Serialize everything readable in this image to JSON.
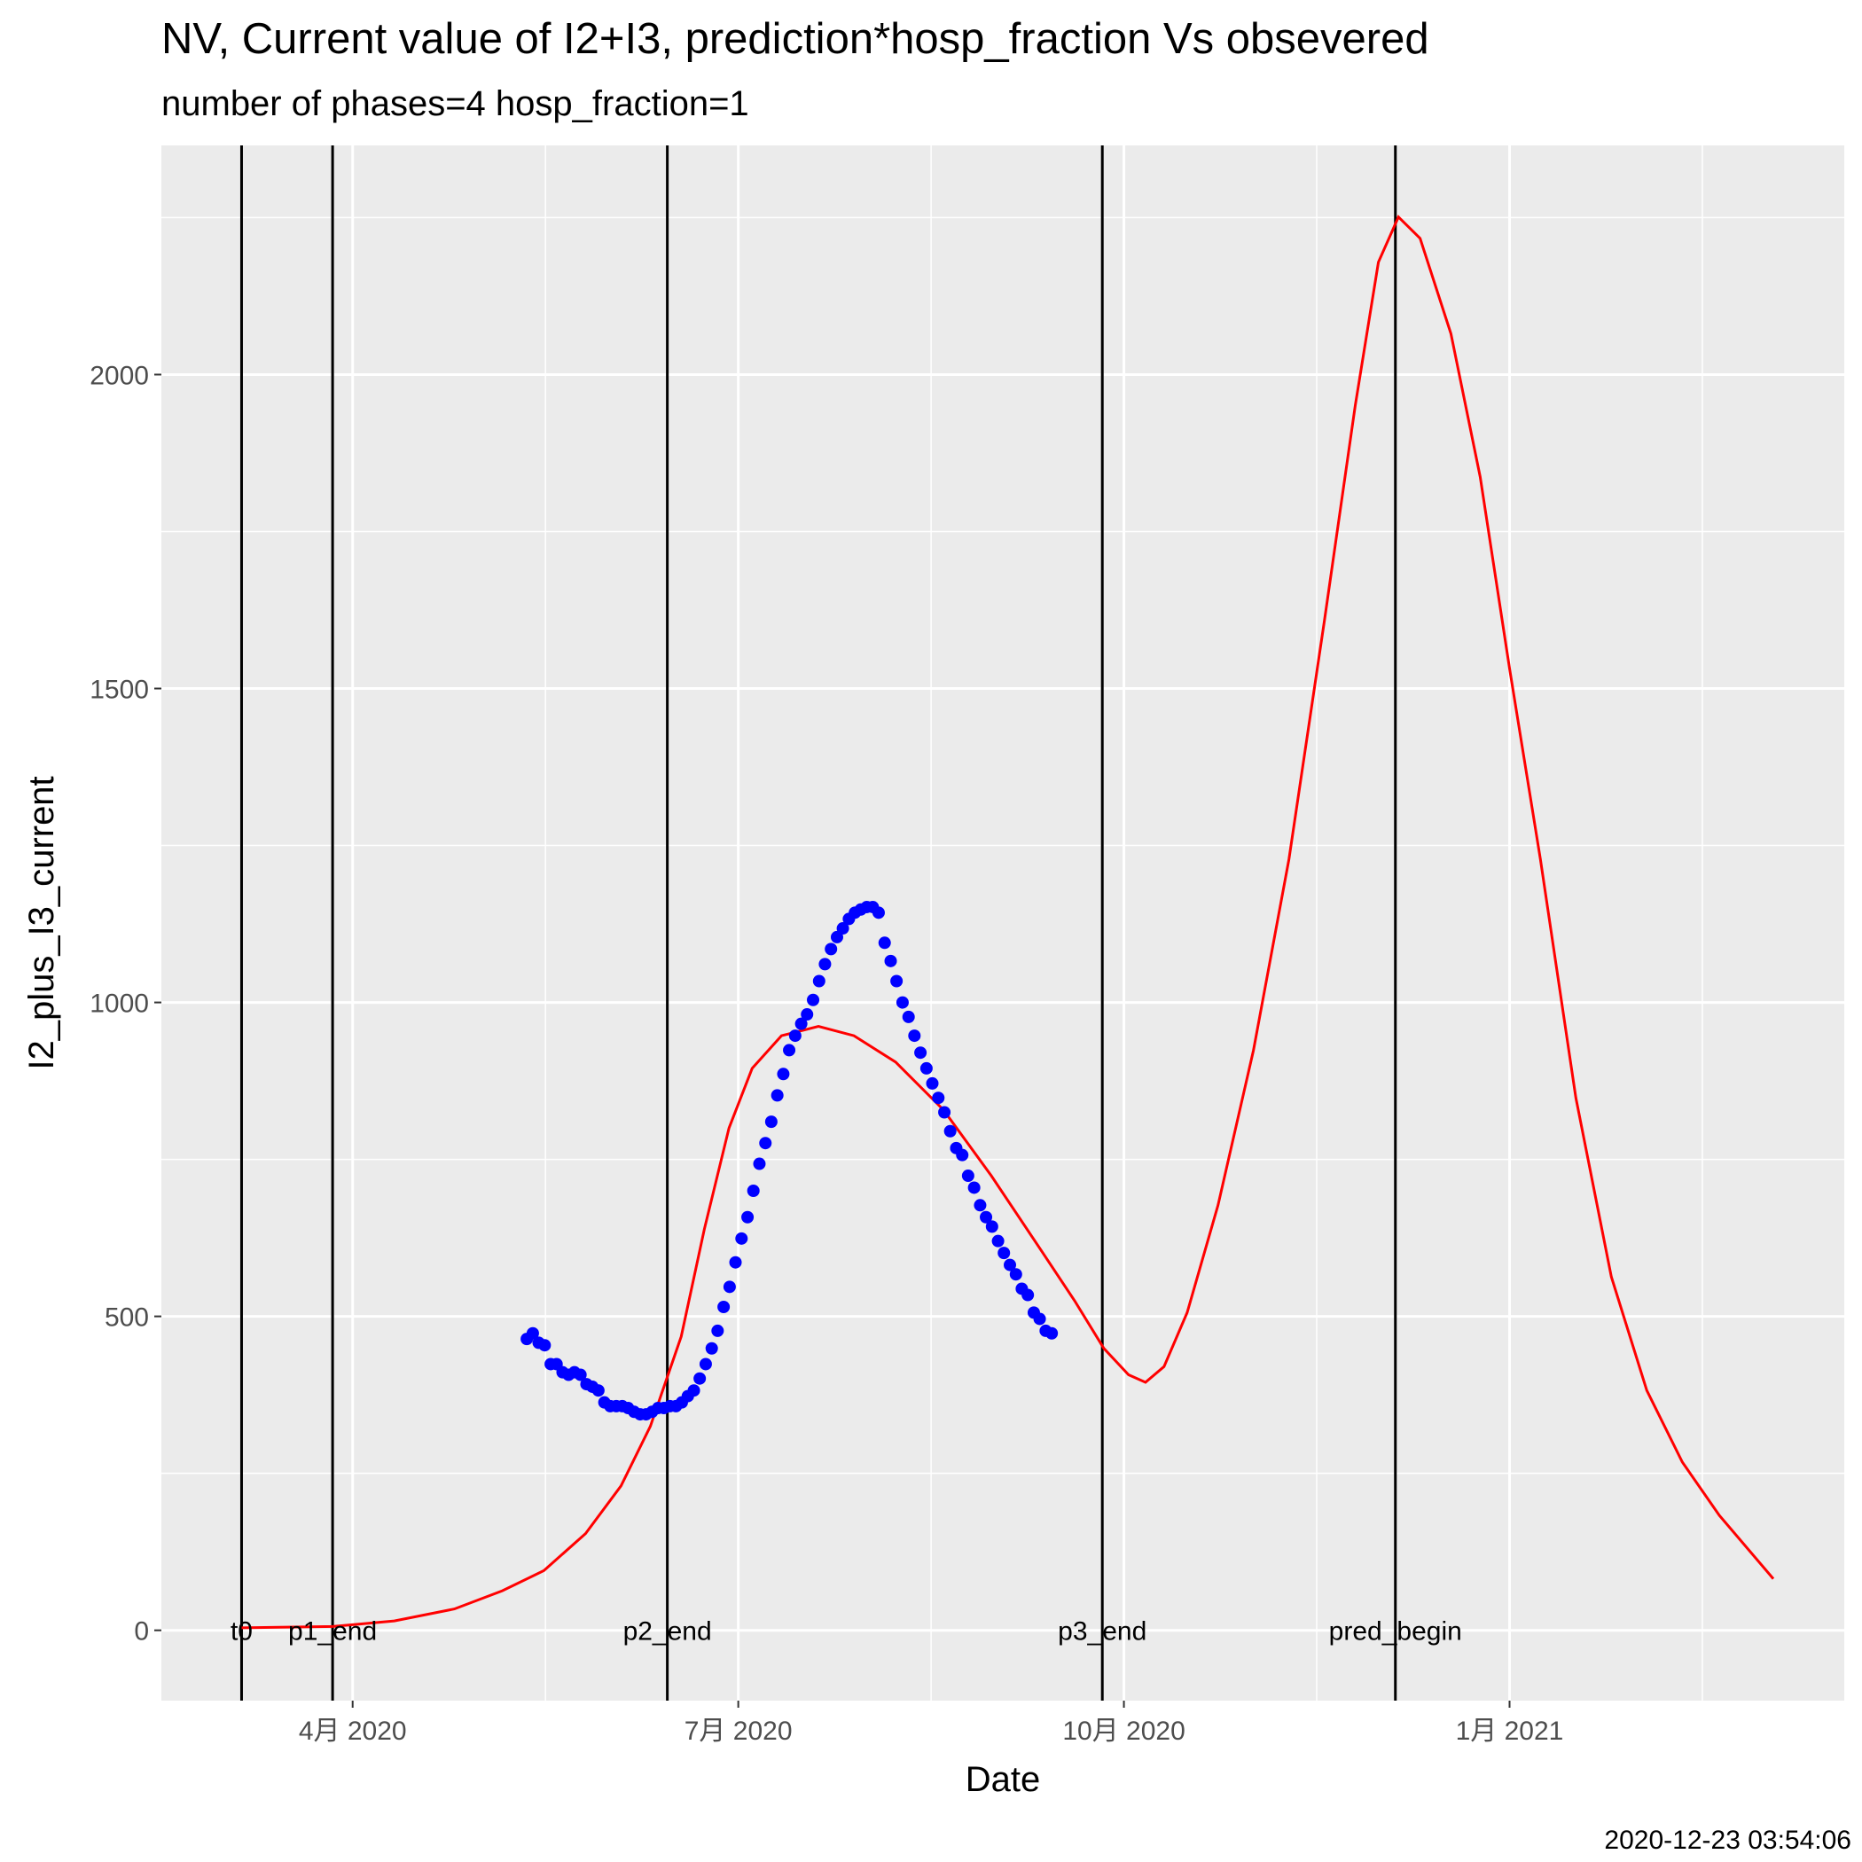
{
  "chart_data": {
    "type": "line",
    "title": "NV, Current value of I2+I3, prediction*hosp_fraction Vs obsevered",
    "subtitle": "number of phases=4   hosp_fraction=1",
    "x_label": "Date",
    "y_label": "I2_plus_I3_current",
    "caption": "2020-12-23 03:54:06",
    "xlim": [
      2020.126,
      2021.217
    ],
    "xticks": [
      {
        "value": 2020.25,
        "label": "4月 2020"
      },
      {
        "value": 2020.5,
        "label": "7月 2020"
      },
      {
        "value": 2020.75,
        "label": "10月 2020"
      },
      {
        "value": 2021.0,
        "label": "1月 2021"
      }
    ],
    "x_minor_ticks": [
      2020.375,
      2020.625,
      2020.875,
      2021.125
    ],
    "ylim": [
      -112,
      2365
    ],
    "yticks": [
      0,
      500,
      1000,
      1500,
      2000
    ],
    "y_minor_ticks": [
      250,
      750,
      1250,
      1750,
      2250
    ],
    "grid": true,
    "vlines": [
      {
        "x": 2020.178,
        "label": "t0"
      },
      {
        "x": 2020.237,
        "label": "p1_end"
      },
      {
        "x": 2020.454,
        "label": "p2_end"
      },
      {
        "x": 2020.736,
        "label": "p3_end"
      },
      {
        "x": 2020.926,
        "label": "pred_begin"
      }
    ],
    "series": [
      {
        "type": "line",
        "color": "#ff0000",
        "x": [
          2020.178,
          2020.237,
          2020.277,
          2020.316,
          2020.347,
          2020.374,
          2020.401,
          2020.424,
          2020.443,
          2020.463,
          2020.478,
          2020.494,
          2020.509,
          2020.528,
          2020.552,
          2020.575,
          2020.602,
          2020.633,
          2020.664,
          2020.695,
          2020.718,
          2020.737,
          2020.753,
          2020.764,
          2020.776,
          2020.791,
          2020.811,
          2020.834,
          2020.857,
          2020.88,
          2020.9,
          2020.915,
          2020.928,
          2020.942,
          2020.962,
          2020.981,
          2021.0,
          2021.02,
          2021.043,
          2021.066,
          2021.089,
          2021.112,
          2021.136,
          2021.171
        ],
        "values": [
          4,
          6,
          15,
          34,
          63,
          95,
          154,
          230,
          325,
          468,
          639,
          800,
          895,
          947,
          962,
          947,
          905,
          829,
          724,
          610,
          525,
          449,
          407,
          395,
          420,
          506,
          677,
          924,
          1228,
          1608,
          1951,
          2179,
          2251,
          2217,
          2065,
          1837,
          1532,
          1228,
          848,
          563,
          382,
          268,
          183,
          82
        ]
      },
      {
        "type": "scatter",
        "color": "#0000ff",
        "x": [
          2020.3629,
          2020.3668,
          2020.3706,
          2020.3745,
          2020.3784,
          2020.3822,
          2020.3861,
          2020.39,
          2020.3938,
          2020.3977,
          2020.4016,
          2020.4054,
          2020.4093,
          2020.4132,
          2020.417,
          2020.4209,
          2020.4248,
          2020.4286,
          2020.4325,
          2020.4364,
          2020.4402,
          2020.4441,
          2020.448,
          2020.4518,
          2020.4557,
          2020.4596,
          2020.4634,
          2020.4673,
          2020.4712,
          2020.475,
          2020.4789,
          2020.4828,
          2020.4866,
          2020.4905,
          2020.4944,
          2020.4982,
          2020.5021,
          2020.506,
          2020.5098,
          2020.5137,
          2020.5176,
          2020.5214,
          2020.5253,
          2020.5292,
          2020.533,
          2020.5369,
          2020.5408,
          2020.5446,
          2020.5485,
          2020.5524,
          2020.5562,
          2020.5601,
          2020.564,
          2020.5678,
          2020.5717,
          2020.5756,
          2020.5794,
          2020.5833,
          2020.5872,
          2020.591,
          2020.5949,
          2020.5988,
          2020.6026,
          2020.6065,
          2020.6104,
          2020.6142,
          2020.6181,
          2020.622,
          2020.6258,
          2020.6297,
          2020.6336,
          2020.6374,
          2020.6413,
          2020.6452,
          2020.649,
          2020.6529,
          2020.6568,
          2020.6606,
          2020.6645,
          2020.6684,
          2020.6722,
          2020.6761,
          2020.68,
          2020.6838,
          2020.6877,
          2020.6916,
          2020.6954,
          2020.6993,
          2020.7032
        ],
        "values": [
          464,
          473,
          458,
          454,
          424,
          424,
          411,
          407,
          411,
          407,
          392,
          388,
          382,
          363,
          357,
          357,
          357,
          354,
          348,
          344,
          344,
          348,
          354,
          354,
          357,
          357,
          363,
          373,
          382,
          401,
          424,
          449,
          477,
          515,
          547,
          586,
          624,
          658,
          700,
          743,
          776,
          810,
          852,
          886,
          924,
          947,
          966,
          981,
          1004,
          1034,
          1061,
          1085,
          1104,
          1118,
          1133,
          1143,
          1148,
          1152,
          1152,
          1143,
          1095,
          1066,
          1034,
          1000,
          977,
          947,
          920,
          895,
          871,
          848,
          825,
          795,
          768,
          757,
          724,
          705,
          677,
          658,
          643,
          620,
          601,
          582,
          567,
          544,
          534,
          506,
          496,
          477,
          473
        ]
      }
    ]
  }
}
